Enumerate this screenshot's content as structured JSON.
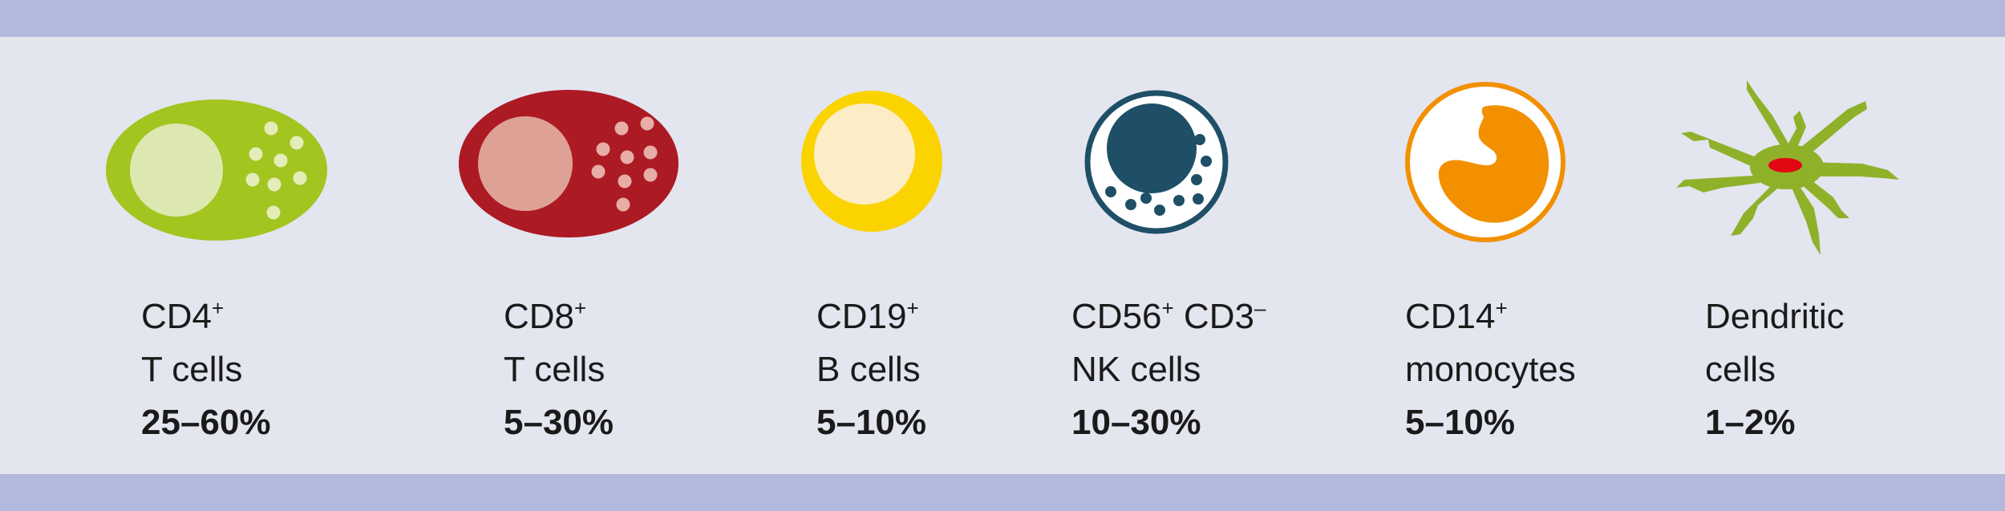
{
  "cells": [
    {
      "marker": "CD4",
      "marker_sup": "+",
      "marker2": "",
      "marker2_sup": "",
      "type": "T cells",
      "range": "25–60%",
      "color": "#a2c520"
    },
    {
      "marker": "CD8",
      "marker_sup": "+",
      "marker2": "",
      "marker2_sup": "",
      "type": "T cells",
      "range": "5–30%",
      "color": "#ac1a24"
    },
    {
      "marker": "CD19",
      "marker_sup": "+",
      "marker2": "",
      "marker2_sup": "",
      "type": "B cells",
      "range": "5–10%",
      "color": "#fbd300"
    },
    {
      "marker": "CD56",
      "marker_sup": "+",
      "marker2": " CD3",
      "marker2_sup": "–",
      "type": "NK cells",
      "range": "10–30%",
      "color": "#1e4f67"
    },
    {
      "marker": "CD14",
      "marker_sup": "+",
      "marker2": "",
      "marker2_sup": "",
      "type": "monocytes",
      "range": "5–10%",
      "color": "#f29000"
    },
    {
      "marker": "Dendritic",
      "marker_sup": "",
      "marker2": "",
      "marker2_sup": "",
      "type": "cells",
      "range": "1–2%",
      "color": "#8fb12a"
    }
  ],
  "colors": {
    "background": "#e3e5ef",
    "band": "#b3b9dc",
    "text": "#1a1a1a"
  }
}
